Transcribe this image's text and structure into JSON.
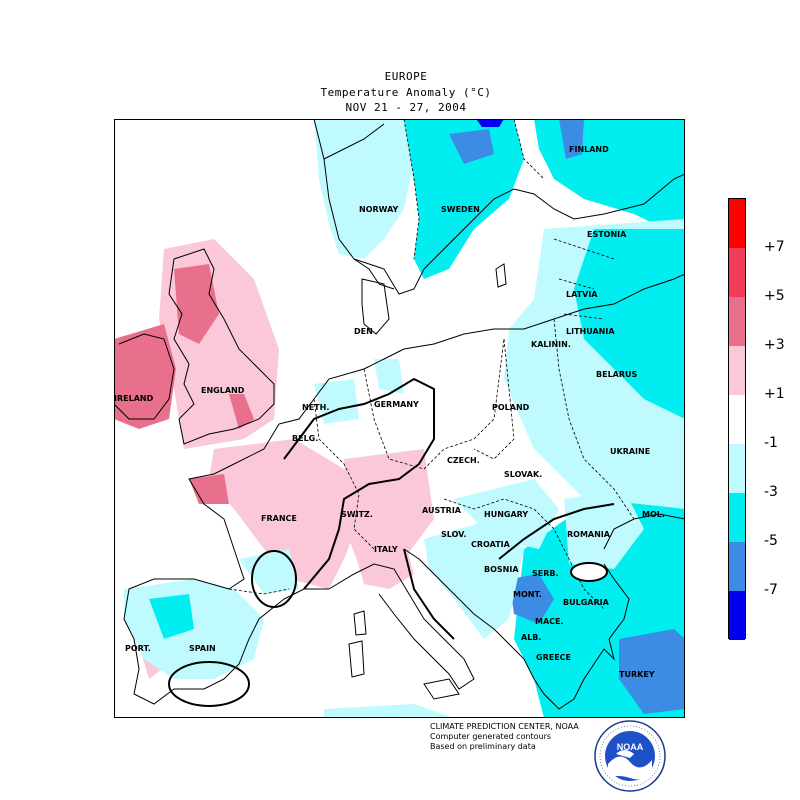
{
  "header": {
    "region": "EUROPE",
    "variable": "Temperature Anomaly (°C)",
    "period": "NOV 21 - 27, 2004"
  },
  "map": {
    "labels": [
      "FINLAND",
      "NORWAY",
      "SWEDEN",
      "ESTONIA",
      "LATVIA",
      "LITHUANIA",
      "KALININ.",
      "DEN",
      "BELARUS",
      "IRELAND",
      "ENGLAND",
      "NETH.",
      "GERMANY",
      "POLAND",
      "BELG.",
      "CZECH.",
      "UKRAINE",
      "SLOVAK.",
      "FRANCE",
      "SWITZ.",
      "AUSTRIA",
      "HUNGARY",
      "MOL.",
      "ROMANIA",
      "SLOV.",
      "CROATIA",
      "ITALY",
      "BOSNIA",
      "SERB.",
      "MONT.",
      "BULGARIA",
      "MACE.",
      "ALB.",
      "PORT.",
      "SPAIN",
      "GREECE",
      "TURKEY"
    ]
  },
  "legend": {
    "colors": [
      "#ff0000",
      "#f03c5a",
      "#e8708c",
      "#fac8d8",
      "#ffffff",
      "#bffaff",
      "#00eef0",
      "#3c8ce6",
      "#0000ee"
    ],
    "ticks": [
      "+7",
      "+5",
      "+3",
      "+1",
      "-1",
      "-3",
      "-5",
      "-7"
    ],
    "classes": [
      "> +7",
      "+5 to +7",
      "+3 to +5",
      "+1 to +3",
      "-1 to +1",
      "-3 to -1",
      "-5 to -3",
      "-7 to -5",
      "< -7"
    ]
  },
  "credits": {
    "line1": "CLIMATE PREDICTION CENTER, NOAA",
    "line2": "Computer generated contours",
    "line3": "Based on preliminary data"
  },
  "logo": {
    "text": "NOAA",
    "icon": "noaa-logo"
  }
}
